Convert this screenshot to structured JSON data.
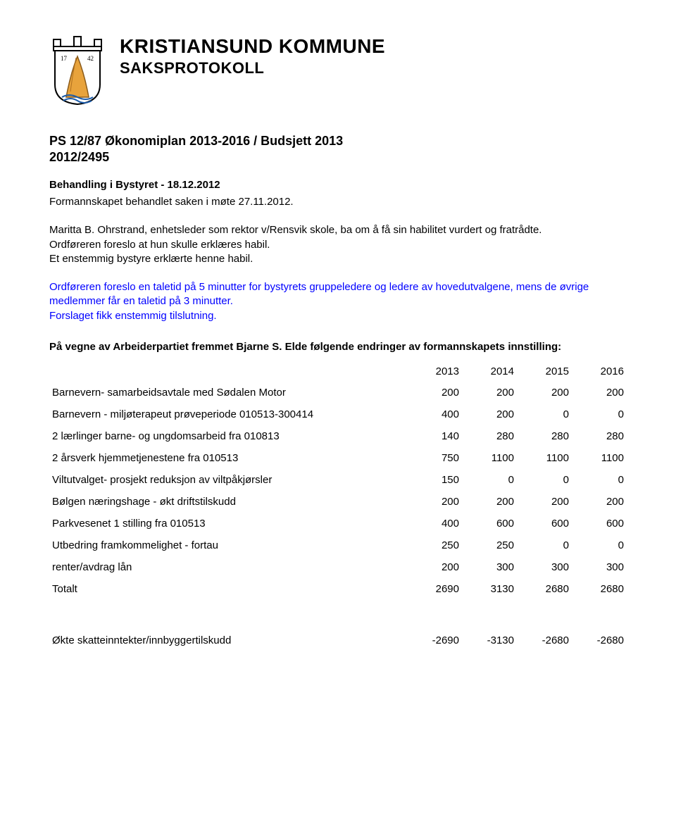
{
  "header": {
    "org_name": "KRISTIANSUND KOMMUNE",
    "doc_type": "SAKSPROTOKOLL",
    "crest_year_left": "17",
    "crest_year_right": "42"
  },
  "case": {
    "title": "PS 12/87 Økonomiplan 2013-2016 / Budsjett 2013",
    "ref": "2012/2495",
    "meeting": "Behandling i Bystyret - 18.12.2012"
  },
  "paragraphs": {
    "p1": "Formannskapet behandlet saken i møte 27.11.2012.",
    "p2": "Maritta B. Ohrstrand, enhetsleder som rektor v/Rensvik skole, ba om å få sin habilitet vurdert og fratrådte.",
    "p3": "Ordføreren foreslo at hun skulle erklæres habil.",
    "p4": "Et enstemmig bystyre erklærte henne habil.",
    "p5": "Ordføreren foreslo en taletid på 5 minutter for bystyrets gruppeledere og ledere av hovedutvalgene, mens de øvrige medlemmer får en taletid på 3 minutter.",
    "p6": "Forslaget fikk enstemmig tilslutning."
  },
  "section": {
    "title": "På vegne av Arbeiderpartiet fremmet Bjarne S. Elde følgende endringer av formannskapets innstilling:"
  },
  "table": {
    "years": [
      "2013",
      "2014",
      "2015",
      "2016"
    ],
    "rows": [
      {
        "label": "Barnevern- samarbeidsavtale med Sødalen Motor",
        "v": [
          "200",
          "200",
          "200",
          "200"
        ]
      },
      {
        "label": "Barnevern - miljøterapeut prøveperiode 010513-300414",
        "v": [
          "400",
          "200",
          "0",
          "0"
        ]
      },
      {
        "label": "2 lærlinger barne- og ungdomsarbeid fra 010813",
        "v": [
          "140",
          "280",
          "280",
          "280"
        ]
      },
      {
        "label": "2 årsverk hjemmetjenestene fra 010513",
        "v": [
          "750",
          "1100",
          "1100",
          "1100"
        ]
      },
      {
        "label": "Viltutvalget- prosjekt reduksjon av viltpåkjørsler",
        "v": [
          "150",
          "0",
          "0",
          "0"
        ]
      },
      {
        "label": "Bølgen næringshage - økt driftstilskudd",
        "v": [
          "200",
          "200",
          "200",
          "200"
        ]
      },
      {
        "label": "Parkvesenet 1 stilling fra 010513",
        "v": [
          "400",
          "600",
          "600",
          "600"
        ]
      },
      {
        "label": "Utbedring framkommelighet - fortau",
        "v": [
          "250",
          "250",
          "0",
          "0"
        ]
      },
      {
        "label": "renter/avdrag lån",
        "v": [
          "200",
          "300",
          "300",
          "300"
        ]
      },
      {
        "label": "Totalt",
        "v": [
          "2690",
          "3130",
          "2680",
          "2680"
        ]
      }
    ],
    "footer_row": {
      "label": "Økte skatteinntekter/innbyggertilskudd",
      "v": [
        "-2690",
        "-3130",
        "-2680",
        "-2680"
      ]
    }
  }
}
